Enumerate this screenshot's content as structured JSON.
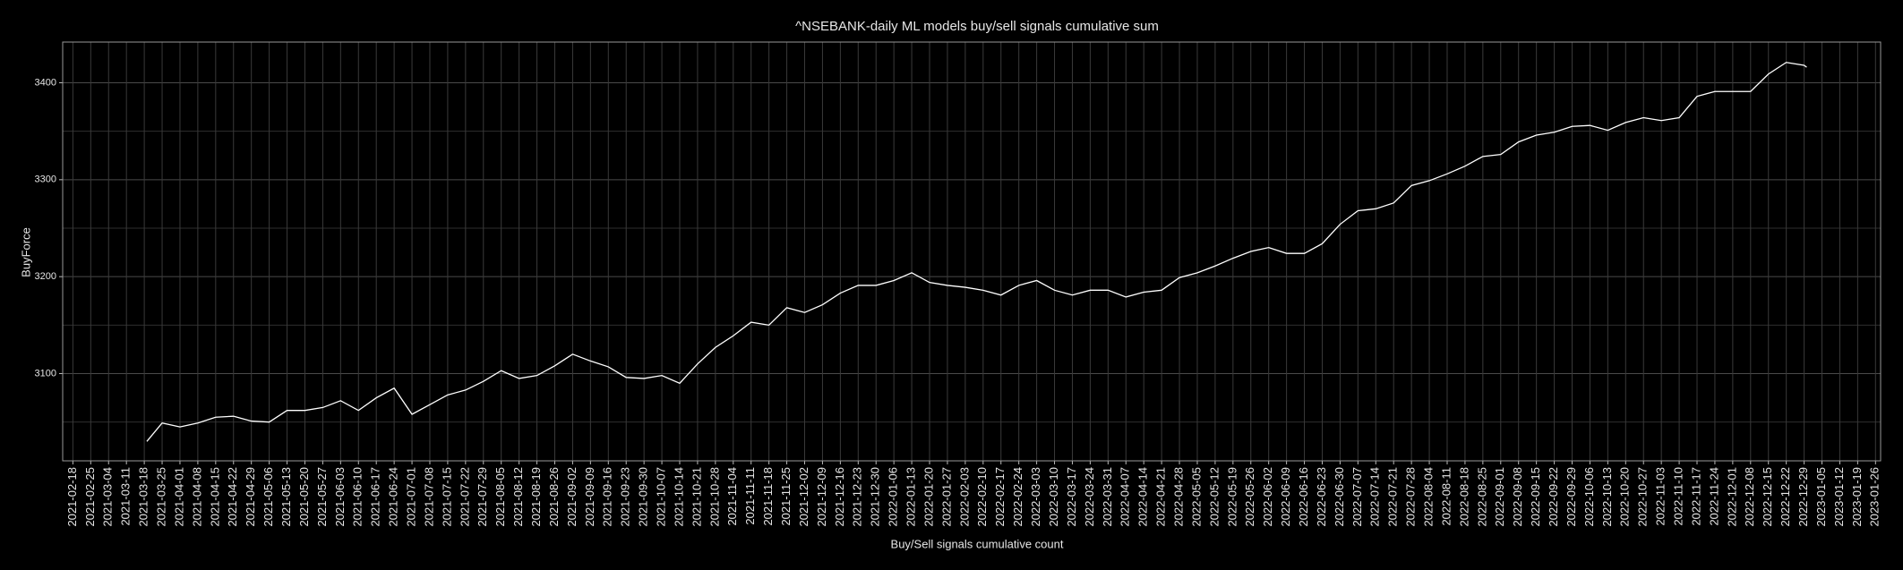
{
  "chart_data": {
    "type": "line",
    "title": "^NSEBANK-daily ML models buy/sell signals cumulative sum",
    "x_label": "Buy/Sell signals cumulative count",
    "y_label": "BuyForce",
    "x": [
      "2021-03-19",
      "2021-03-25",
      "2021-04-01",
      "2021-04-08",
      "2021-04-15",
      "2021-04-22",
      "2021-04-29",
      "2021-05-06",
      "2021-05-13",
      "2021-05-20",
      "2021-05-27",
      "2021-06-03",
      "2021-06-10",
      "2021-06-17",
      "2021-06-24",
      "2021-07-01",
      "2021-07-08",
      "2021-07-15",
      "2021-07-22",
      "2021-07-29",
      "2021-08-05",
      "2021-08-12",
      "2021-08-19",
      "2021-08-26",
      "2021-09-02",
      "2021-09-09",
      "2021-09-16",
      "2021-09-23",
      "2021-09-30",
      "2021-10-07",
      "2021-10-14",
      "2021-10-21",
      "2021-10-28",
      "2021-11-04",
      "2021-11-11",
      "2021-11-18",
      "2021-11-25",
      "2021-12-02",
      "2021-12-09",
      "2021-12-16",
      "2021-12-23",
      "2021-12-30",
      "2022-01-06",
      "2022-01-13",
      "2022-01-20",
      "2022-01-27",
      "2022-02-03",
      "2022-02-10",
      "2022-02-17",
      "2022-02-24",
      "2022-03-03",
      "2022-03-10",
      "2022-03-17",
      "2022-03-24",
      "2022-03-31",
      "2022-04-07",
      "2022-04-14",
      "2022-04-21",
      "2022-04-28",
      "2022-05-05",
      "2022-05-12",
      "2022-05-19",
      "2022-05-26",
      "2022-06-02",
      "2022-06-09",
      "2022-06-16",
      "2022-06-23",
      "2022-06-30",
      "2022-07-07",
      "2022-07-14",
      "2022-07-21",
      "2022-07-28",
      "2022-08-04",
      "2022-08-11",
      "2022-08-18",
      "2022-08-25",
      "2022-09-01",
      "2022-09-08",
      "2022-09-15",
      "2022-09-22",
      "2022-09-29",
      "2022-10-06",
      "2022-10-13",
      "2022-10-20",
      "2022-10-27",
      "2022-11-03",
      "2022-11-10",
      "2022-11-17",
      "2022-11-24",
      "2022-12-01",
      "2022-12-08",
      "2022-12-15",
      "2022-12-22",
      "2022-12-29",
      "2022-12-30"
    ],
    "series": [
      {
        "name": "BuyForce",
        "color": "#ffffff",
        "values": [
          3030,
          3049,
          3045,
          3049,
          3055,
          3056,
          3051,
          3050,
          3062,
          3062,
          3065,
          3072,
          3062,
          3075,
          3085,
          3058,
          3068,
          3078,
          3083,
          3092,
          3103,
          3095,
          3098,
          3108,
          3120,
          3113,
          3107,
          3096,
          3095,
          3098,
          3090,
          3110,
          3127,
          3139,
          3153,
          3150,
          3168,
          3163,
          3171,
          3183,
          3191,
          3191,
          3196,
          3204,
          3194,
          3191,
          3189,
          3186,
          3181,
          3191,
          3196,
          3186,
          3181,
          3186,
          3186,
          3179,
          3184,
          3186,
          3199,
          3204,
          3211,
          3219,
          3226,
          3230,
          3224,
          3224,
          3234,
          3254,
          3268,
          3270,
          3276,
          3294,
          3299,
          3306,
          3314,
          3324,
          3326,
          3339,
          3346,
          3349,
          3355,
          3356,
          3351,
          3359,
          3364,
          3361,
          3364,
          3386,
          3391,
          3391,
          3391,
          3409,
          3421,
          3418,
          3416
        ]
      }
    ],
    "xlim": [
      "2021-02-14",
      "2023-01-28"
    ],
    "xticks": [
      "2021-02-18",
      "2021-02-25",
      "2021-03-04",
      "2021-03-11",
      "2021-03-18",
      "2021-03-25",
      "2021-04-01",
      "2021-04-08",
      "2021-04-15",
      "2021-04-22",
      "2021-04-29",
      "2021-05-06",
      "2021-05-13",
      "2021-05-20",
      "2021-05-27",
      "2021-06-03",
      "2021-06-10",
      "2021-06-17",
      "2021-06-24",
      "2021-07-01",
      "2021-07-08",
      "2021-07-15",
      "2021-07-22",
      "2021-07-29",
      "2021-08-05",
      "2021-08-12",
      "2021-08-19",
      "2021-08-26",
      "2021-09-02",
      "2021-09-09",
      "2021-09-16",
      "2021-09-23",
      "2021-09-30",
      "2021-10-07",
      "2021-10-14",
      "2021-10-21",
      "2021-10-28",
      "2021-11-04",
      "2021-11-11",
      "2021-11-18",
      "2021-11-25",
      "2021-12-02",
      "2021-12-09",
      "2021-12-16",
      "2021-12-23",
      "2021-12-30",
      "2022-01-06",
      "2022-01-13",
      "2022-01-20",
      "2022-01-27",
      "2022-02-03",
      "2022-02-10",
      "2022-02-17",
      "2022-02-24",
      "2022-03-03",
      "2022-03-10",
      "2022-03-17",
      "2022-03-24",
      "2022-03-31",
      "2022-04-07",
      "2022-04-14",
      "2022-04-21",
      "2022-04-28",
      "2022-05-05",
      "2022-05-12",
      "2022-05-19",
      "2022-05-26",
      "2022-06-02",
      "2022-06-09",
      "2022-06-16",
      "2022-06-23",
      "2022-06-30",
      "2022-07-07",
      "2022-07-14",
      "2022-07-21",
      "2022-07-28",
      "2022-08-04",
      "2022-08-11",
      "2022-08-18",
      "2022-08-25",
      "2022-09-01",
      "2022-09-08",
      "2022-09-15",
      "2022-09-22",
      "2022-09-29",
      "2022-10-06",
      "2022-10-13",
      "2022-10-20",
      "2022-10-27",
      "2022-11-03",
      "2022-11-10",
      "2022-11-17",
      "2022-11-24",
      "2022-12-01",
      "2022-12-08",
      "2022-12-15",
      "2022-12-22",
      "2022-12-29",
      "2023-01-05",
      "2023-01-12",
      "2023-01-19",
      "2023-01-26"
    ],
    "ylim": [
      3010,
      3442
    ],
    "yticks": [
      3100,
      3200,
      3300,
      3400
    ],
    "y_minor_ticks": [
      3050,
      3150,
      3250,
      3350
    ],
    "grid": true
  }
}
